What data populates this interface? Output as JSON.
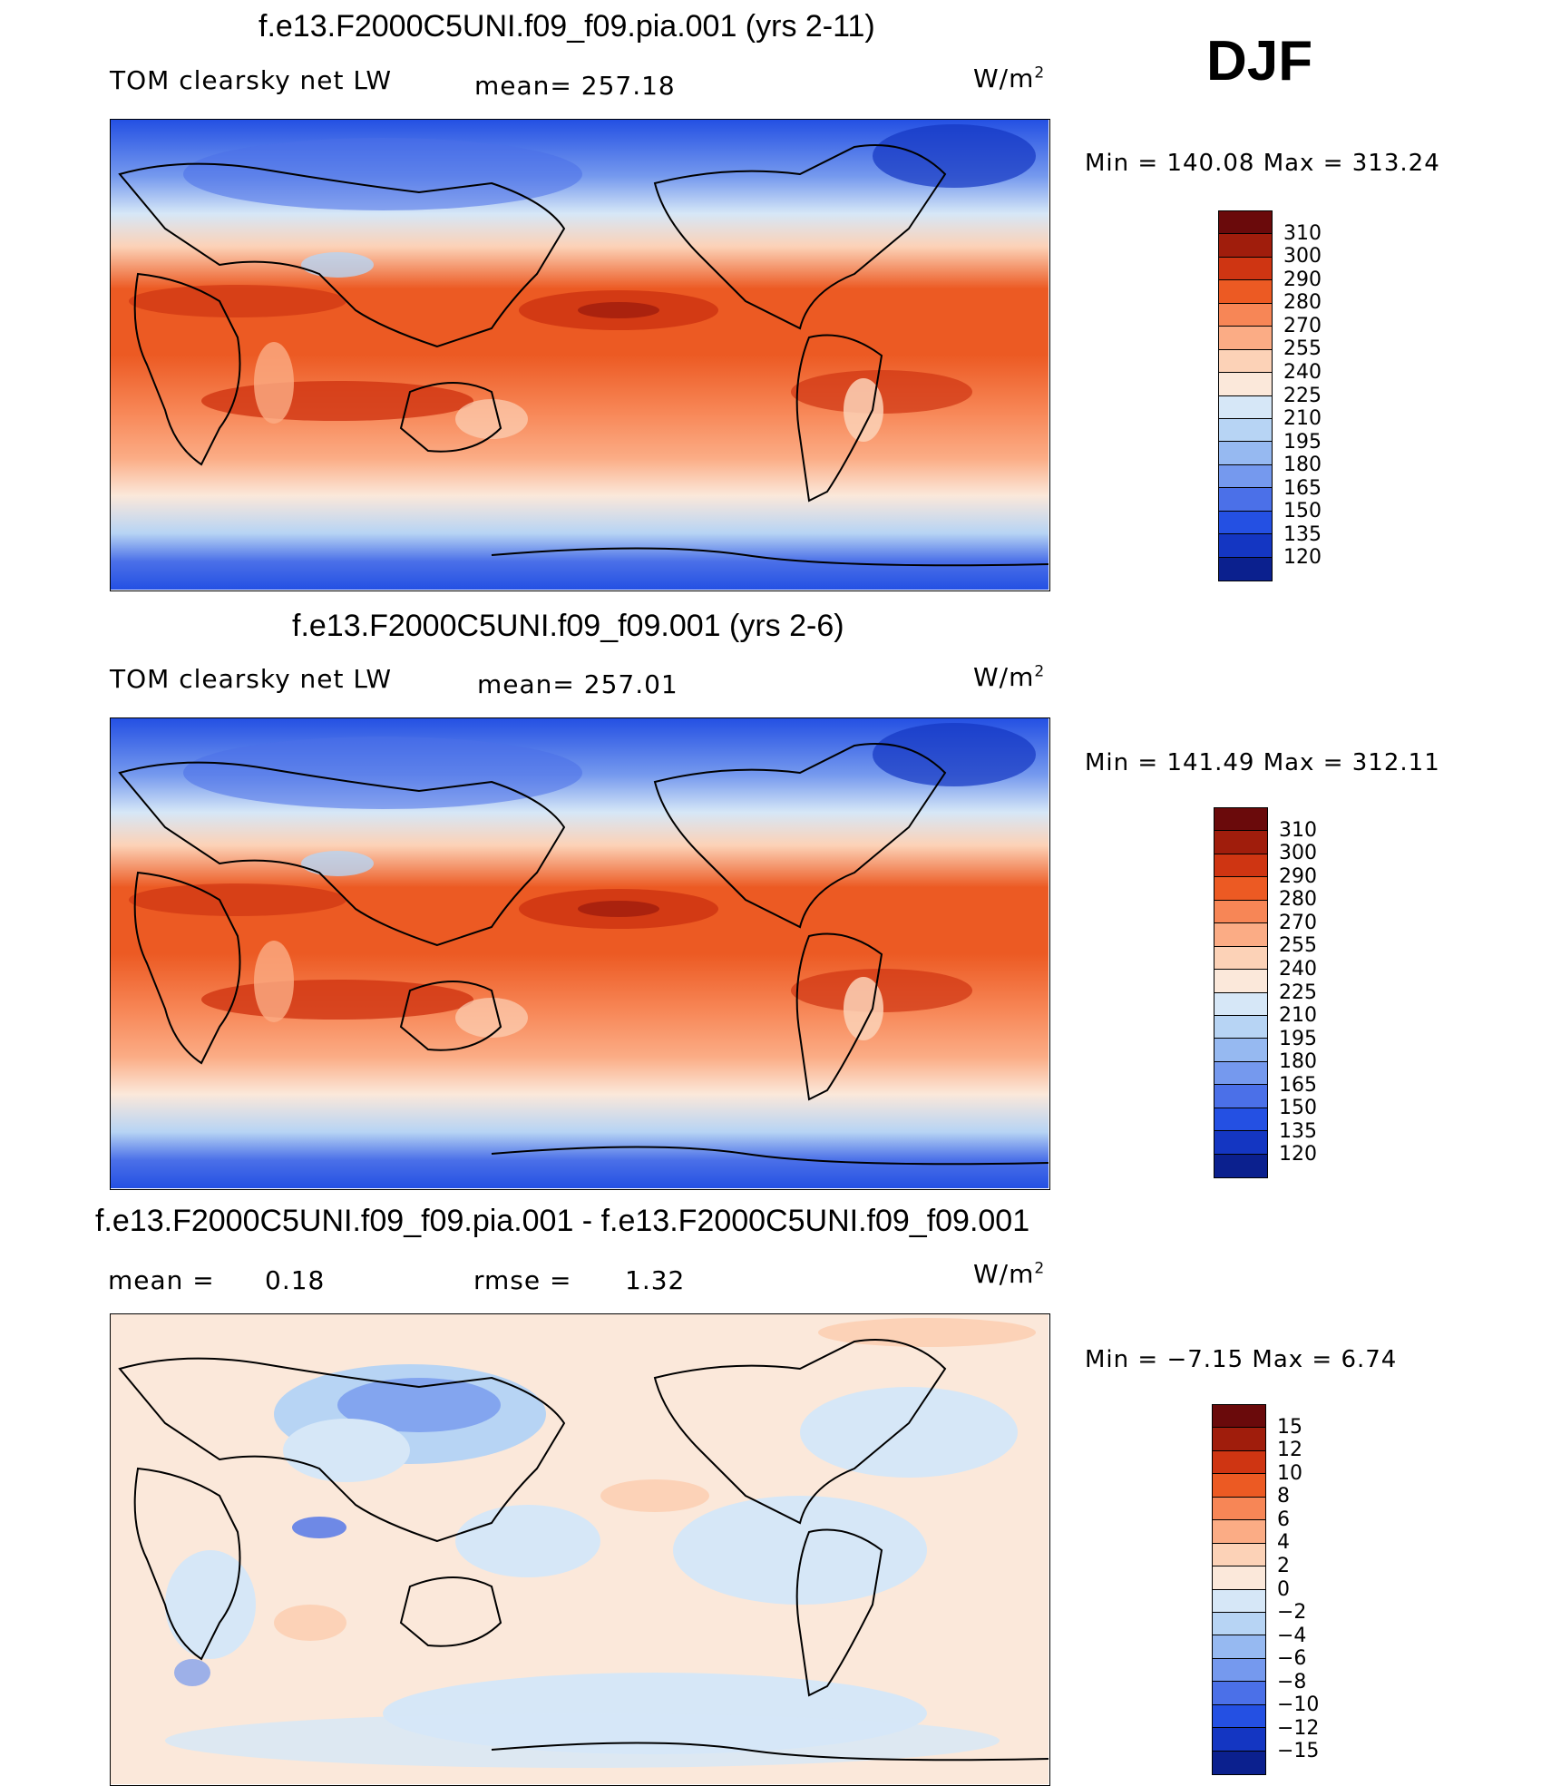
{
  "season": "DJF",
  "units": "W/m",
  "units_exp": "2",
  "panels": [
    {
      "title": "f.e13.F2000C5UNI.f09_f09.pia.001 (yrs 2-11)",
      "variable": "TOM clearsky net LW",
      "stat": "mean=  257.18",
      "minmax": "Min  =  140.08  Max  =  313.24",
      "colors": [
        "#6a0a0b",
        "#a01d0c",
        "#cf3512",
        "#ec5a23",
        "#f78656",
        "#fbac85",
        "#fcd2b7",
        "#fbe8da",
        "#d6e7f7",
        "#b7d4f4",
        "#96b9f1",
        "#7599ee",
        "#4b70e8",
        "#2450e3",
        "#1436c2",
        "#0b208e"
      ],
      "levels": [
        "310",
        "300",
        "290",
        "280",
        "270",
        "255",
        "240",
        "225",
        "210",
        "195",
        "180",
        "165",
        "150",
        "135",
        "120"
      ]
    },
    {
      "title": "f.e13.F2000C5UNI.f09_f09.001 (yrs 2-6)",
      "variable": "TOM clearsky net LW",
      "stat": "mean=  257.01",
      "minmax": "Min  =  141.49  Max  =  312.11",
      "colors": [
        "#6a0a0b",
        "#a01d0c",
        "#cf3512",
        "#ec5a23",
        "#f78656",
        "#fbac85",
        "#fcd2b7",
        "#fbe8da",
        "#d6e7f7",
        "#b7d4f4",
        "#96b9f1",
        "#7599ee",
        "#4b70e8",
        "#2450e3",
        "#1436c2",
        "#0b208e"
      ],
      "levels": [
        "310",
        "300",
        "290",
        "280",
        "270",
        "255",
        "240",
        "225",
        "210",
        "195",
        "180",
        "165",
        "150",
        "135",
        "120"
      ]
    },
    {
      "title": "f.e13.F2000C5UNI.f09_f09.pia.001 - f.e13.F2000C5UNI.f09_f09.001",
      "mean_label": "mean  =",
      "mean_value": "0.18",
      "rmse_label": "rmse  =",
      "rmse_value": "1.32",
      "minmax": "Min  =   −7.15  Max  =      6.74",
      "colors": [
        "#6a0a0b",
        "#a01d0c",
        "#cf3512",
        "#ec5a23",
        "#f78656",
        "#fbac85",
        "#fcd2b7",
        "#fbe8da",
        "#d6e7f7",
        "#b7d4f4",
        "#96b9f1",
        "#7599ee",
        "#4b70e8",
        "#2450e3",
        "#1436c2",
        "#0b208e"
      ],
      "levels": [
        "15",
        "12",
        "10",
        "8",
        "6",
        "4",
        "2",
        "0",
        "−2",
        "−4",
        "−6",
        "−8",
        "−10",
        "−12",
        "−15"
      ]
    }
  ]
}
